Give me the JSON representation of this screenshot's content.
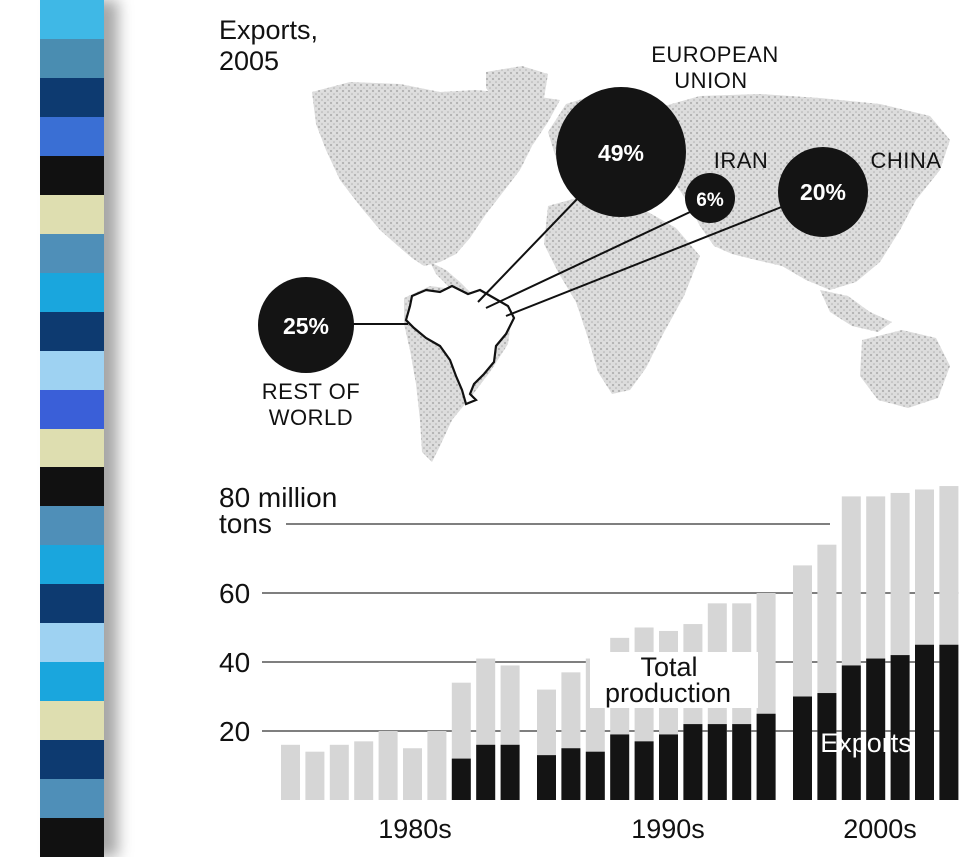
{
  "map": {
    "title_line1": "Exports,",
    "title_line2": "2005",
    "regions": [
      {
        "key": "eu",
        "label_lines": [
          "EUROPEAN",
          "UNION"
        ],
        "value": "49%",
        "share": 49
      },
      {
        "key": "iran",
        "label_lines": [
          "IRAN"
        ],
        "value": "6%",
        "share": 6
      },
      {
        "key": "china",
        "label_lines": [
          "CHINA"
        ],
        "value": "20%",
        "share": 20
      },
      {
        "key": "rest",
        "label_lines": [
          "REST OF",
          "WORLD"
        ],
        "value": "25%",
        "share": 25
      }
    ]
  },
  "chart_data": {
    "type": "bar",
    "y_unit_label": [
      "80 million",
      "tons"
    ],
    "yticks": [
      20,
      40,
      60
    ],
    "ylim": [
      0,
      92
    ],
    "decades": [
      "1980s",
      "1990s",
      "2000s"
    ],
    "annotations": {
      "total_lines": [
        "Total",
        "production"
      ],
      "exports": "Exports"
    },
    "series": [
      {
        "name": "Total production",
        "values": [
          16,
          14,
          16,
          17,
          20,
          15,
          20,
          34,
          41,
          39,
          32,
          37,
          41,
          47,
          50,
          49,
          51,
          57,
          57,
          60,
          68,
          74,
          88,
          88,
          89,
          90,
          91
        ]
      },
      {
        "name": "Exports",
        "values": [
          0,
          0,
          0,
          0,
          0,
          0,
          0,
          12,
          16,
          16,
          13,
          15,
          14,
          19,
          17,
          19,
          22,
          22,
          22,
          25,
          30,
          31,
          39,
          41,
          42,
          45,
          45
        ]
      }
    ],
    "colors": {
      "total": "#d6d6d6",
      "exports": "#141414"
    }
  },
  "theme": {
    "stripe_colors": [
      "#3fb8e6",
      "#4a8db1",
      "#0d3a70",
      "#3a6fd4",
      "#111111",
      "#dedeb0",
      "#4f8fb8",
      "#1aa6dd",
      "#0d3a70",
      "#9ed2f2",
      "#3a5fd8",
      "#dedeb0",
      "#111111",
      "#4f8fb8",
      "#1aa6dd",
      "#0d3a70",
      "#9ed2f2",
      "#1aa6dd",
      "#dedeb0",
      "#0d3a70",
      "#4f8fb8",
      "#111111"
    ]
  }
}
